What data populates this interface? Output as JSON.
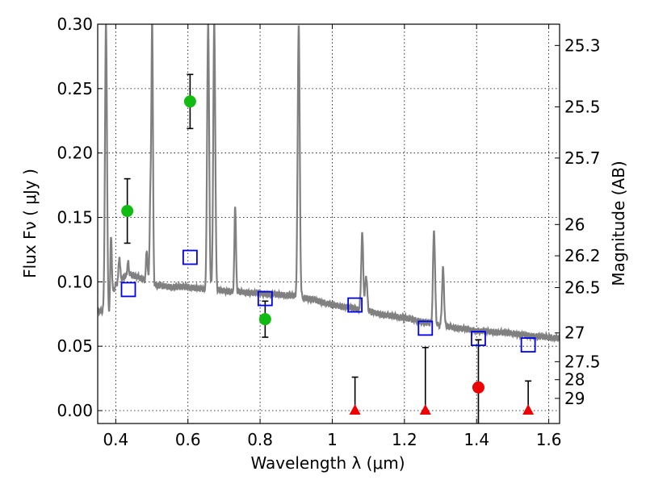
{
  "chart_data": {
    "type": "scatter",
    "title": "",
    "xlabel": "Wavelength  λ (μm)",
    "ylabel_left": "Flux  Fν ( μJy )",
    "ylabel_right": "Magnitude (AB)",
    "xlim": [
      0.35,
      1.63
    ],
    "ylim": [
      -0.01,
      0.3
    ],
    "grid": true,
    "colors": {
      "spectrum": "#808080",
      "green_points": "#11bb11",
      "red_points": "#ee0000",
      "open_squares": "#0000ee",
      "errorbars": "#000000"
    },
    "x_ticks": [
      {
        "value": 0.4,
        "label": "0.4"
      },
      {
        "value": 0.6,
        "label": "0.6"
      },
      {
        "value": 0.8,
        "label": "0.8"
      },
      {
        "value": 1.0,
        "label": "1"
      },
      {
        "value": 1.2,
        "label": "1.2"
      },
      {
        "value": 1.4,
        "label": "1.4"
      },
      {
        "value": 1.6,
        "label": "1.6"
      }
    ],
    "y_ticks": [
      {
        "value": 0.0,
        "label": "0.00"
      },
      {
        "value": 0.05,
        "label": "0.05"
      },
      {
        "value": 0.1,
        "label": "0.10"
      },
      {
        "value": 0.15,
        "label": "0.15"
      },
      {
        "value": 0.2,
        "label": "0.20"
      },
      {
        "value": 0.25,
        "label": "0.25"
      },
      {
        "value": 0.3,
        "label": "0.30"
      }
    ],
    "mag_ticks": [
      {
        "value": 0.2835,
        "label": "25.3"
      },
      {
        "value": 0.2358,
        "label": "25.5"
      },
      {
        "value": 0.1961,
        "label": "25.7"
      },
      {
        "value": 0.1445,
        "label": "26"
      },
      {
        "value": 0.1202,
        "label": "26.2"
      },
      {
        "value": 0.0955,
        "label": "26.5"
      },
      {
        "value": 0.0603,
        "label": "27"
      },
      {
        "value": 0.038,
        "label": "27.5"
      },
      {
        "value": 0.024,
        "label": "28"
      },
      {
        "value": 0.0095,
        "label": "29"
      }
    ],
    "spectrum": {
      "continuum": [
        [
          0.35,
          0.078
        ],
        [
          0.37,
          0.076
        ],
        [
          0.38,
          0.072
        ],
        [
          0.39,
          0.09
        ],
        [
          0.4,
          0.098
        ],
        [
          0.42,
          0.103
        ],
        [
          0.44,
          0.106
        ],
        [
          0.46,
          0.104
        ],
        [
          0.48,
          0.101
        ],
        [
          0.5,
          0.098
        ],
        [
          0.52,
          0.097
        ],
        [
          0.55,
          0.096
        ],
        [
          0.58,
          0.096
        ],
        [
          0.6,
          0.096
        ],
        [
          0.65,
          0.094
        ],
        [
          0.7,
          0.093
        ],
        [
          0.75,
          0.092
        ],
        [
          0.8,
          0.091
        ],
        [
          0.85,
          0.09
        ],
        [
          0.9,
          0.089
        ],
        [
          0.95,
          0.086
        ],
        [
          1.0,
          0.082
        ],
        [
          1.05,
          0.08
        ],
        [
          1.1,
          0.077
        ],
        [
          1.15,
          0.074
        ],
        [
          1.2,
          0.072
        ],
        [
          1.25,
          0.069
        ],
        [
          1.3,
          0.066
        ],
        [
          1.35,
          0.064
        ],
        [
          1.4,
          0.062
        ],
        [
          1.45,
          0.061
        ],
        [
          1.5,
          0.06
        ],
        [
          1.55,
          0.058
        ],
        [
          1.6,
          0.057
        ],
        [
          1.63,
          0.056
        ]
      ],
      "emission_lines": [
        {
          "x": 0.373,
          "peak": 0.3,
          "width": 0.004
        },
        {
          "x": 0.387,
          "peak": 0.135,
          "width": 0.003
        },
        {
          "x": 0.41,
          "peak": 0.12,
          "width": 0.003
        },
        {
          "x": 0.434,
          "peak": 0.115,
          "width": 0.003
        },
        {
          "x": 0.486,
          "peak": 0.125,
          "width": 0.003
        },
        {
          "x": 0.496,
          "peak": 0.165,
          "width": 0.003
        },
        {
          "x": 0.501,
          "peak": 0.3,
          "width": 0.003
        },
        {
          "x": 0.656,
          "peak": 0.3,
          "width": 0.004
        },
        {
          "x": 0.673,
          "peak": 0.3,
          "width": 0.004
        },
        {
          "x": 0.731,
          "peak": 0.16,
          "width": 0.003
        },
        {
          "x": 0.907,
          "peak": 0.3,
          "width": 0.004
        },
        {
          "x": 1.083,
          "peak": 0.137,
          "width": 0.004
        },
        {
          "x": 1.094,
          "peak": 0.105,
          "width": 0.004
        },
        {
          "x": 1.282,
          "peak": 0.14,
          "width": 0.004
        },
        {
          "x": 1.307,
          "peak": 0.11,
          "width": 0.004
        }
      ]
    },
    "series": [
      {
        "marker": "circle",
        "color_key": "green_points",
        "points": [
          {
            "x": 0.432,
            "y": 0.155,
            "yerr": 0.025
          },
          {
            "x": 0.606,
            "y": 0.24,
            "yerr": 0.021
          },
          {
            "x": 0.814,
            "y": 0.071,
            "yerr": 0.014
          }
        ]
      },
      {
        "marker": "circle",
        "color_key": "red_points",
        "points": [
          {
            "x": 1.405,
            "y": 0.018,
            "yerr_low": 0.028,
            "yerr_high": 0.037
          }
        ]
      },
      {
        "marker": "triangle",
        "color_key": "red_points",
        "points": [
          {
            "x": 1.063,
            "y": 0.0,
            "yerr_high": 0.026
          },
          {
            "x": 1.258,
            "y": 0.0,
            "yerr_high": 0.049
          },
          {
            "x": 1.543,
            "y": 0.0,
            "yerr_high": 0.023
          }
        ]
      },
      {
        "marker": "open-square",
        "color_key": "open_squares",
        "points": [
          {
            "x": 0.435,
            "y": 0.094
          },
          {
            "x": 0.606,
            "y": 0.119
          },
          {
            "x": 0.814,
            "y": 0.087
          },
          {
            "x": 1.063,
            "y": 0.082
          },
          {
            "x": 1.258,
            "y": 0.064
          },
          {
            "x": 1.405,
            "y": 0.056
          },
          {
            "x": 1.543,
            "y": 0.051
          }
        ]
      }
    ]
  }
}
